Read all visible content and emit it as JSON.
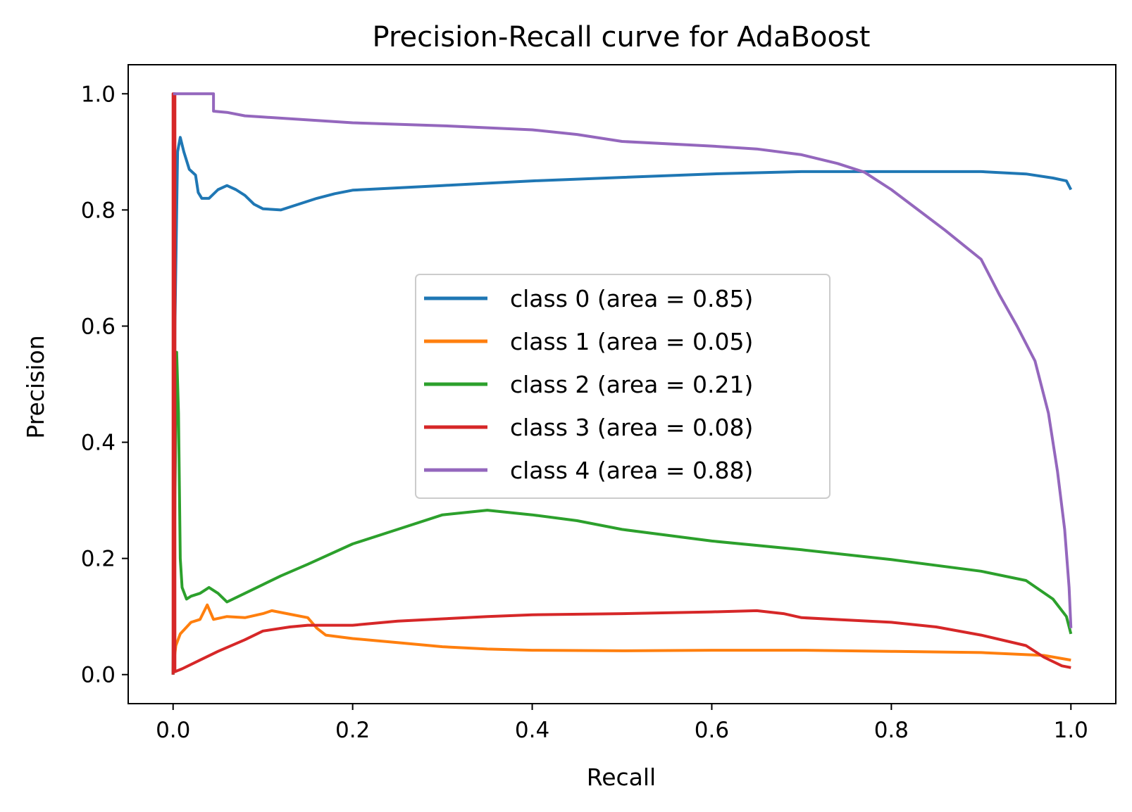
{
  "chart_data": {
    "type": "line",
    "title": "Precision-Recall curve for AdaBoost",
    "xlabel": "Recall",
    "ylabel": "Precision",
    "xlim": [
      -0.05,
      1.05
    ],
    "ylim": [
      -0.05,
      1.05
    ],
    "xticks": [
      0.0,
      0.2,
      0.4,
      0.6,
      0.8,
      1.0
    ],
    "xtick_labels": [
      "0.0",
      "0.2",
      "0.4",
      "0.6",
      "0.8",
      "1.0"
    ],
    "yticks": [
      0.0,
      0.2,
      0.4,
      0.6,
      0.8,
      1.0
    ],
    "ytick_labels": [
      "0.0",
      "0.2",
      "0.4",
      "0.6",
      "0.8",
      "1.0"
    ],
    "grid": false,
    "legend_position": "center-right",
    "series": [
      {
        "name": "class 0 (area = 0.85)",
        "color": "#1f77b4",
        "points": [
          [
            0,
            0
          ],
          [
            0.002,
            0.6
          ],
          [
            0.005,
            0.9
          ],
          [
            0.008,
            0.925
          ],
          [
            0.012,
            0.9
          ],
          [
            0.018,
            0.87
          ],
          [
            0.025,
            0.86
          ],
          [
            0.028,
            0.83
          ],
          [
            0.032,
            0.82
          ],
          [
            0.04,
            0.82
          ],
          [
            0.05,
            0.835
          ],
          [
            0.06,
            0.842
          ],
          [
            0.07,
            0.835
          ],
          [
            0.08,
            0.825
          ],
          [
            0.09,
            0.81
          ],
          [
            0.1,
            0.802
          ],
          [
            0.12,
            0.8
          ],
          [
            0.14,
            0.81
          ],
          [
            0.16,
            0.82
          ],
          [
            0.18,
            0.828
          ],
          [
            0.2,
            0.834
          ],
          [
            0.25,
            0.838
          ],
          [
            0.3,
            0.842
          ],
          [
            0.35,
            0.846
          ],
          [
            0.4,
            0.85
          ],
          [
            0.5,
            0.856
          ],
          [
            0.6,
            0.862
          ],
          [
            0.7,
            0.866
          ],
          [
            0.8,
            0.866
          ],
          [
            0.9,
            0.866
          ],
          [
            0.95,
            0.862
          ],
          [
            0.98,
            0.855
          ],
          [
            0.995,
            0.85
          ],
          [
            1.0,
            0.835
          ]
        ]
      },
      {
        "name": "class 1 (area = 0.05)",
        "color": "#ff7f0e",
        "points": [
          [
            0,
            0.01
          ],
          [
            0.003,
            0.05
          ],
          [
            0.008,
            0.07
          ],
          [
            0.02,
            0.09
          ],
          [
            0.03,
            0.095
          ],
          [
            0.038,
            0.12
          ],
          [
            0.045,
            0.095
          ],
          [
            0.06,
            0.1
          ],
          [
            0.08,
            0.098
          ],
          [
            0.1,
            0.105
          ],
          [
            0.11,
            0.11
          ],
          [
            0.13,
            0.104
          ],
          [
            0.15,
            0.098
          ],
          [
            0.16,
            0.08
          ],
          [
            0.17,
            0.068
          ],
          [
            0.2,
            0.062
          ],
          [
            0.25,
            0.055
          ],
          [
            0.3,
            0.048
          ],
          [
            0.35,
            0.044
          ],
          [
            0.4,
            0.042
          ],
          [
            0.5,
            0.041
          ],
          [
            0.6,
            0.042
          ],
          [
            0.7,
            0.042
          ],
          [
            0.8,
            0.04
          ],
          [
            0.9,
            0.038
          ],
          [
            0.97,
            0.033
          ],
          [
            1.0,
            0.025
          ]
        ]
      },
      {
        "name": "class 2 (area = 0.21)",
        "color": "#2ca02c",
        "points": [
          [
            0,
            0.0
          ],
          [
            0.002,
            0.3
          ],
          [
            0.004,
            0.555
          ],
          [
            0.006,
            0.45
          ],
          [
            0.008,
            0.2
          ],
          [
            0.01,
            0.15
          ],
          [
            0.015,
            0.13
          ],
          [
            0.02,
            0.135
          ],
          [
            0.03,
            0.14
          ],
          [
            0.04,
            0.15
          ],
          [
            0.05,
            0.14
          ],
          [
            0.06,
            0.125
          ],
          [
            0.08,
            0.14
          ],
          [
            0.1,
            0.155
          ],
          [
            0.12,
            0.17
          ],
          [
            0.15,
            0.19
          ],
          [
            0.2,
            0.225
          ],
          [
            0.25,
            0.25
          ],
          [
            0.3,
            0.275
          ],
          [
            0.35,
            0.283
          ],
          [
            0.4,
            0.275
          ],
          [
            0.45,
            0.265
          ],
          [
            0.5,
            0.25
          ],
          [
            0.55,
            0.24
          ],
          [
            0.6,
            0.23
          ],
          [
            0.7,
            0.215
          ],
          [
            0.8,
            0.198
          ],
          [
            0.9,
            0.178
          ],
          [
            0.95,
            0.162
          ],
          [
            0.98,
            0.13
          ],
          [
            0.995,
            0.1
          ],
          [
            1.0,
            0.07
          ]
        ]
      },
      {
        "name": "class 3 (area = 0.08)",
        "color": "#d62728",
        "points": [
          [
            0,
            0.0
          ],
          [
            0.0,
            1.0
          ],
          [
            0.002,
            1.0
          ],
          [
            0.002,
            0.005
          ],
          [
            0.01,
            0.01
          ],
          [
            0.03,
            0.025
          ],
          [
            0.05,
            0.04
          ],
          [
            0.08,
            0.06
          ],
          [
            0.1,
            0.075
          ],
          [
            0.13,
            0.082
          ],
          [
            0.15,
            0.085
          ],
          [
            0.2,
            0.085
          ],
          [
            0.25,
            0.092
          ],
          [
            0.3,
            0.096
          ],
          [
            0.35,
            0.1
          ],
          [
            0.4,
            0.103
          ],
          [
            0.5,
            0.105
          ],
          [
            0.6,
            0.108
          ],
          [
            0.65,
            0.11
          ],
          [
            0.68,
            0.105
          ],
          [
            0.7,
            0.098
          ],
          [
            0.75,
            0.094
          ],
          [
            0.8,
            0.09
          ],
          [
            0.85,
            0.082
          ],
          [
            0.9,
            0.068
          ],
          [
            0.95,
            0.05
          ],
          [
            0.97,
            0.03
          ],
          [
            0.99,
            0.015
          ],
          [
            1.0,
            0.012
          ]
        ]
      },
      {
        "name": "class 4 (area = 0.88)",
        "color": "#9467bd",
        "points": [
          [
            0,
            1.0
          ],
          [
            0.045,
            1.0
          ],
          [
            0.045,
            0.97
          ],
          [
            0.06,
            0.968
          ],
          [
            0.08,
            0.962
          ],
          [
            0.1,
            0.96
          ],
          [
            0.15,
            0.955
          ],
          [
            0.2,
            0.95
          ],
          [
            0.3,
            0.945
          ],
          [
            0.4,
            0.938
          ],
          [
            0.45,
            0.93
          ],
          [
            0.5,
            0.918
          ],
          [
            0.6,
            0.91
          ],
          [
            0.65,
            0.905
          ],
          [
            0.7,
            0.895
          ],
          [
            0.74,
            0.88
          ],
          [
            0.77,
            0.865
          ],
          [
            0.8,
            0.835
          ],
          [
            0.83,
            0.8
          ],
          [
            0.86,
            0.765
          ],
          [
            0.88,
            0.74
          ],
          [
            0.9,
            0.715
          ],
          [
            0.92,
            0.655
          ],
          [
            0.94,
            0.6
          ],
          [
            0.96,
            0.54
          ],
          [
            0.975,
            0.45
          ],
          [
            0.985,
            0.35
          ],
          [
            0.993,
            0.25
          ],
          [
            0.998,
            0.15
          ],
          [
            1.0,
            0.08
          ]
        ]
      }
    ]
  }
}
